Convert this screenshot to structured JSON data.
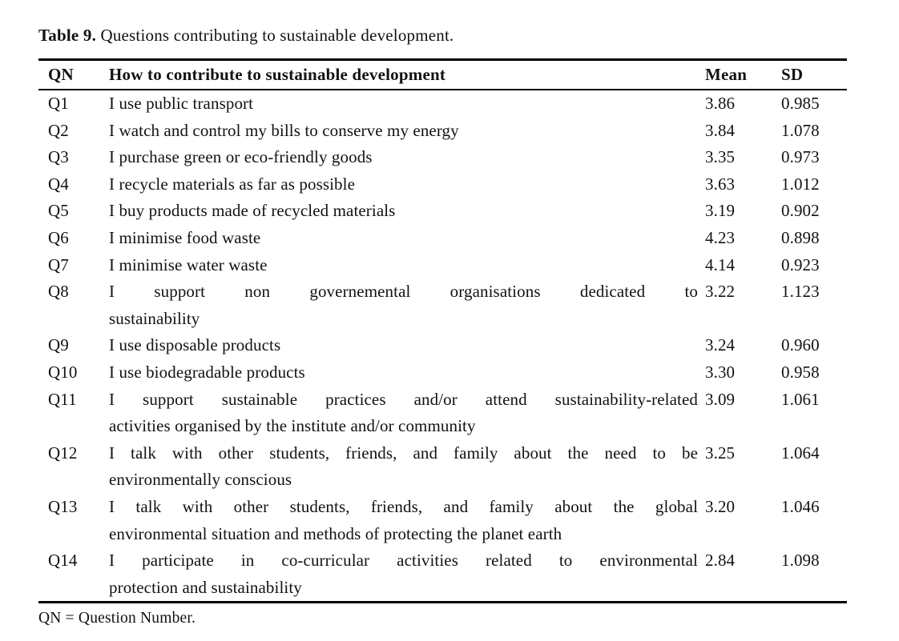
{
  "caption": {
    "label": "Table 9.",
    "text": "Questions contributing to sustainable development."
  },
  "columns": {
    "qn": "QN",
    "question": "How to contribute to sustainable development",
    "mean": "Mean",
    "sd": "SD"
  },
  "rows": [
    {
      "qn": "Q1",
      "lines": [
        "I use public transport"
      ],
      "mean": "3.86",
      "sd": "0.985"
    },
    {
      "qn": "Q2",
      "lines": [
        "I watch and control my bills to conserve my energy"
      ],
      "mean": "3.84",
      "sd": "1.078"
    },
    {
      "qn": "Q3",
      "lines": [
        "I purchase green or eco-friendly goods"
      ],
      "mean": "3.35",
      "sd": "0.973"
    },
    {
      "qn": "Q4",
      "lines": [
        "I recycle materials as far as possible"
      ],
      "mean": "3.63",
      "sd": "1.012"
    },
    {
      "qn": "Q5",
      "lines": [
        "I buy products made of recycled materials"
      ],
      "mean": "3.19",
      "sd": "0.902"
    },
    {
      "qn": "Q6",
      "lines": [
        "I minimise food waste"
      ],
      "mean": "4.23",
      "sd": "0.898"
    },
    {
      "qn": "Q7",
      "lines": [
        "I minimise water waste"
      ],
      "mean": "4.14",
      "sd": "0.923"
    },
    {
      "qn": "Q8",
      "lines": [
        "I support non governemental organisations dedicated to",
        "sustainability"
      ],
      "mean": "3.22",
      "sd": "1.123"
    },
    {
      "qn": "Q9",
      "lines": [
        "I use disposable products"
      ],
      "mean": "3.24",
      "sd": "0.960"
    },
    {
      "qn": "Q10",
      "lines": [
        "I use biodegradable products"
      ],
      "mean": "3.30",
      "sd": "0.958"
    },
    {
      "qn": "Q11",
      "lines": [
        "I support sustainable practices and/or attend sustainability-related",
        "activities organised by the institute and/or community"
      ],
      "mean": "3.09",
      "sd": "1.061"
    },
    {
      "qn": "Q12",
      "lines": [
        "I talk with other students, friends, and family about the need to be",
        "environmentally conscious"
      ],
      "mean": "3.25",
      "sd": "1.064"
    },
    {
      "qn": "Q13",
      "lines": [
        "I talk with other students, friends, and family about the global",
        "environmental situation and methods of protecting the planet earth"
      ],
      "mean": "3.20",
      "sd": "1.046"
    },
    {
      "qn": "Q14",
      "lines": [
        "I participate in co-curricular activities related to environmental",
        "protection and sustainability"
      ],
      "mean": "2.84",
      "sd": "1.098"
    }
  ],
  "footnote": "QN = Question Number.",
  "colors": {
    "text": "#121212",
    "rule": "#000000",
    "background": "#ffffff"
  }
}
